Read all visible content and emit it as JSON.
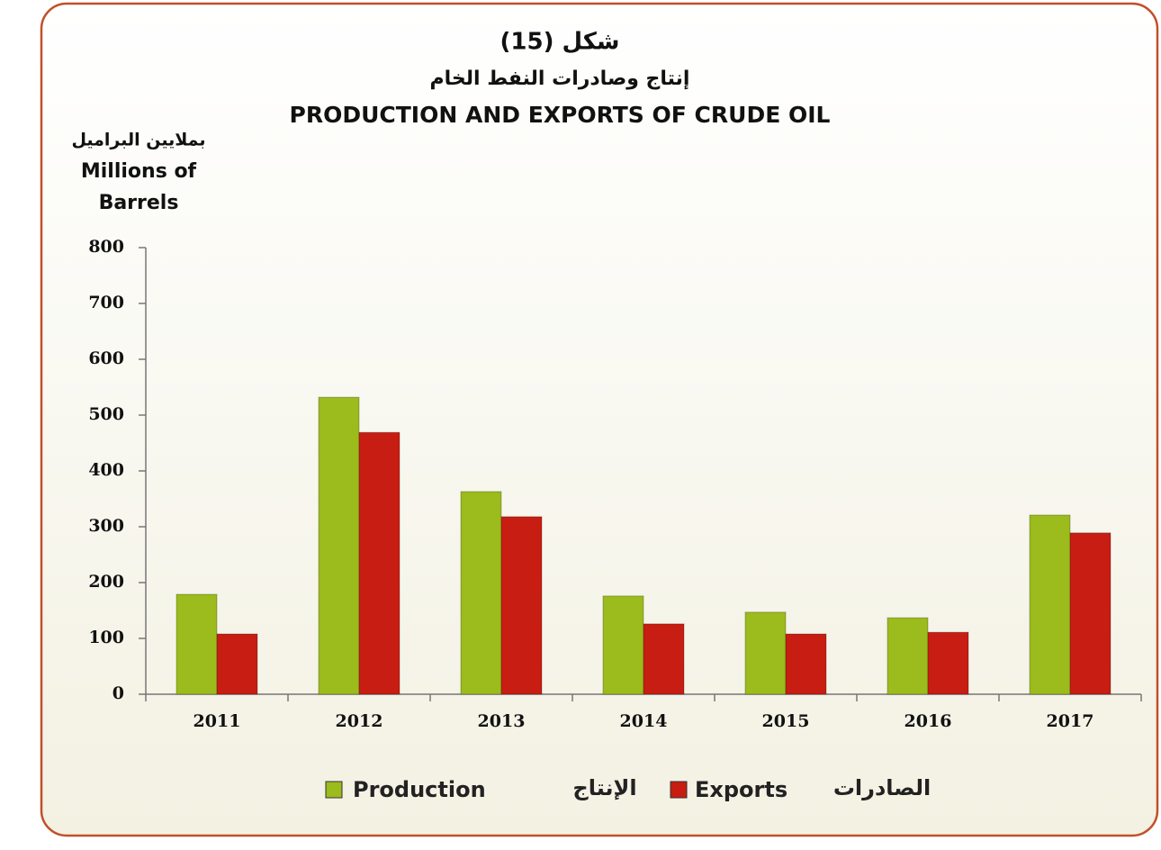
{
  "chart_data": {
    "type": "bar",
    "title": "PRODUCTION AND EXPORTS OF CRUDE OIL",
    "title_ar": [
      "شكل (15)",
      "إنتاج وصادرات النفط الخام"
    ],
    "y_label_ar": "بملايين البراميل",
    "y_label": [
      "Millions of",
      "Barrels"
    ],
    "categories": [
      "2011",
      "2012",
      "2013",
      "2014",
      "2015",
      "2016",
      "2017"
    ],
    "series": [
      {
        "name": "Production",
        "name_ar": "الإنتاج",
        "color": "#9cbb1c",
        "values": [
          179,
          532,
          363,
          176,
          147,
          137,
          321
        ]
      },
      {
        "name": "Exports",
        "name_ar": "الصادرات",
        "color": "#c81d12",
        "values": [
          108,
          469,
          318,
          126,
          108,
          111,
          289
        ]
      }
    ],
    "ylim": [
      0,
      800
    ],
    "yticks": [
      0,
      100,
      200,
      300,
      400,
      500,
      600,
      700,
      800
    ]
  }
}
